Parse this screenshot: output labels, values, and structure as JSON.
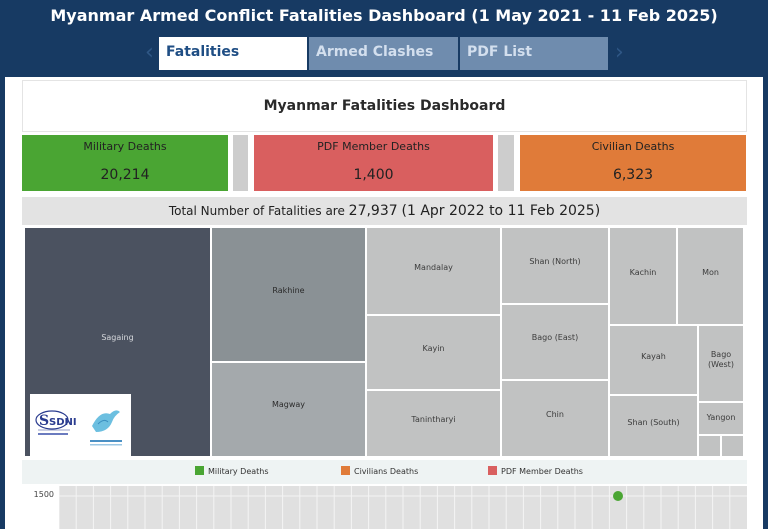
{
  "header": {
    "title": "Myanmar Armed Conflict Fatalities Dashboard (1 May 2021 - 11 Feb 2025)"
  },
  "tabs": [
    {
      "label": "Fatalities",
      "active": true
    },
    {
      "label": "Armed Clashes",
      "active": false
    },
    {
      "label": "PDF List",
      "active": false
    }
  ],
  "dashboard": {
    "title": "Myanmar Fatalities Dashboard",
    "kpis": [
      {
        "label": "Military Deaths",
        "value": "20,214",
        "color": "#4aa533"
      },
      {
        "label": "PDF Member Deaths",
        "value": "1,400",
        "color": "#d95f5f"
      },
      {
        "label": "Civilian Deaths",
        "value": "6,323",
        "color": "#e07b39"
      }
    ],
    "total": {
      "prefix": "Total Number of Fatalities are",
      "count": "27,937",
      "range": "(1 Apr 2022 to 11 Feb 2025)"
    }
  },
  "treemap": {
    "regions": [
      "Sagaing",
      "Rakhine",
      "Magway",
      "Mandalay",
      "Kayin",
      "Tanintharyi",
      "Shan (North)",
      "Bago (East)",
      "Chin",
      "Kachin",
      "Mon",
      "Kayah",
      "Bago\n(West)",
      "Shan (South)",
      "Yangon"
    ]
  },
  "logos": [
    "SDNI",
    "Myanmar Peace Monitor"
  ],
  "legend": [
    {
      "label": "Military Deaths",
      "color": "#4aa533"
    },
    {
      "label": "Civilians Deaths",
      "color": "#e07b39"
    },
    {
      "label": "PDF Member Deaths",
      "color": "#d95f5f"
    }
  ],
  "chart_data": {
    "type": "scatter",
    "y_ticks": [
      "1500"
    ],
    "grid": true,
    "series": [
      {
        "name": "Military Deaths",
        "color": "#4aa533"
      }
    ]
  }
}
